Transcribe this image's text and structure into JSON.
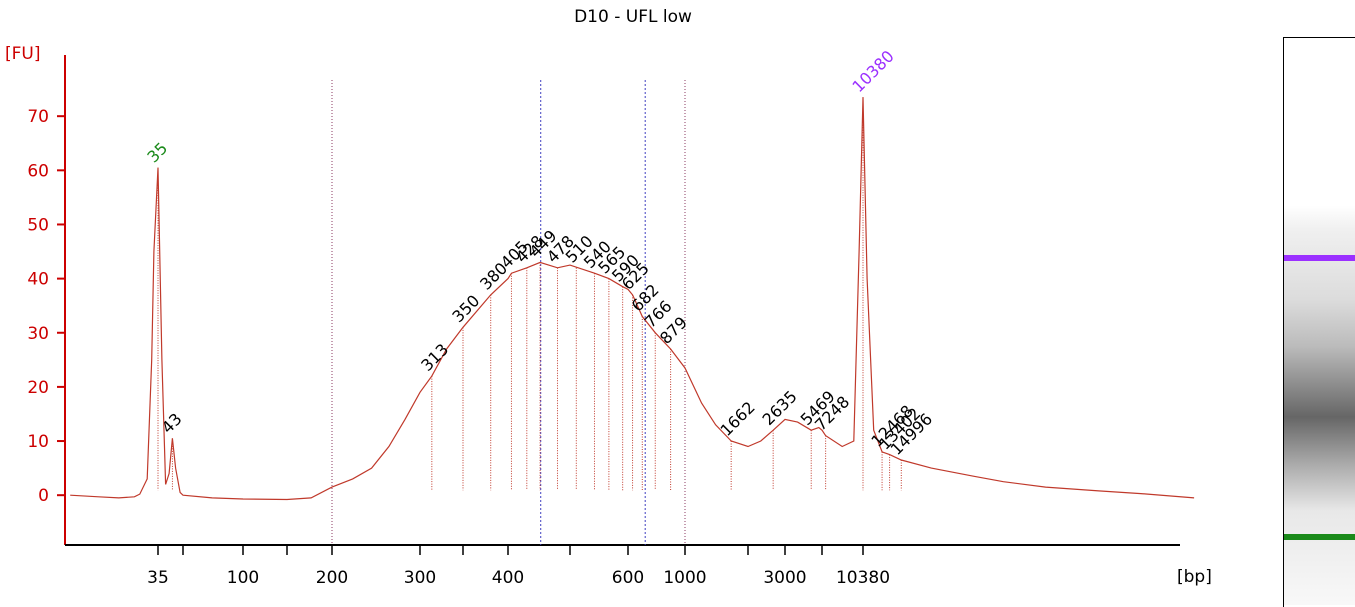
{
  "chart_data": {
    "type": "electropherogram",
    "title": "D10 - UFL low",
    "ylabel": "[FU]",
    "xlabel": "[bp]",
    "ylim": [
      -9.2,
      81.3
    ],
    "yticks": [
      0,
      10,
      20,
      30,
      40,
      50,
      60,
      70
    ],
    "xticks": [
      35,
      100,
      200,
      300,
      400,
      600,
      1000,
      3000,
      10380
    ],
    "xminor_ticks": [
      50,
      150,
      350,
      500,
      2000,
      7000
    ],
    "region": [
      200,
      1000
    ],
    "markers": [
      450,
      700
    ],
    "trace": {
      "color": "#c0392b",
      "x": [
        10,
        15,
        20,
        25,
        27,
        30,
        32,
        33,
        35,
        37,
        39,
        41,
        43,
        45,
        48,
        50,
        70,
        100,
        150,
        175,
        200,
        220,
        240,
        260,
        280,
        300,
        313,
        330,
        350,
        380,
        400,
        405,
        428,
        449,
        478,
        500,
        540,
        565,
        590,
        600,
        625,
        682,
        766,
        879,
        1000,
        1200,
        1400,
        1662,
        2000,
        2300,
        2635,
        3000,
        4000,
        5469,
        6500,
        7000,
        7248,
        8500,
        9500,
        10000,
        10380,
        10800,
        11500,
        12468,
        13402,
        14996,
        20000,
        30000,
        40000,
        60000,
        100000,
        150000,
        250000
      ],
      "values": [
        0,
        -0.3,
        -0.5,
        -0.3,
        0.2,
        3,
        25,
        45,
        60.5,
        25,
        2,
        4,
        10.5,
        5,
        0.5,
        0,
        -0.5,
        -0.7,
        -0.8,
        -0.5,
        1.5,
        3,
        5,
        9,
        14,
        19,
        22,
        27,
        31,
        37,
        40,
        41,
        42,
        43,
        42,
        42.5,
        41,
        40,
        38.5,
        38,
        37,
        33,
        30,
        27,
        23.5,
        17,
        13,
        10,
        9,
        10,
        12,
        14,
        13.5,
        12,
        12.5,
        12,
        11,
        9,
        10,
        45,
        73.5,
        40,
        12,
        8,
        7.5,
        6.5,
        5,
        3.5,
        2.5,
        1.5,
        0.8,
        0.3,
        -0.5
      ]
    },
    "peaks": {
      "x": [
        35,
        43,
        313,
        350,
        380,
        405,
        428,
        449,
        478,
        510,
        540,
        565,
        590,
        625,
        682,
        766,
        879,
        1662,
        2635,
        5469,
        7248,
        10380,
        12468,
        13402,
        14996
      ],
      "values": [
        60.5,
        10.5,
        22,
        31,
        37,
        41,
        42,
        43,
        42,
        42,
        41,
        40,
        38.5,
        37,
        33,
        30,
        27,
        10,
        12,
        12,
        11,
        73.5,
        8,
        7.5,
        6.5
      ],
      "colors": [
        "#1a8a1a",
        "#000000",
        "#000000",
        "#000000",
        "#000000",
        "#000000",
        "#000000",
        "#000000",
        "#000000",
        "#000000",
        "#000000",
        "#000000",
        "#000000",
        "#000000",
        "#000000",
        "#000000",
        "#000000",
        "#000000",
        "#000000",
        "#000000",
        "#000000",
        "#9b30ff",
        "#000000",
        "#000000",
        "#000000"
      ]
    }
  }
}
